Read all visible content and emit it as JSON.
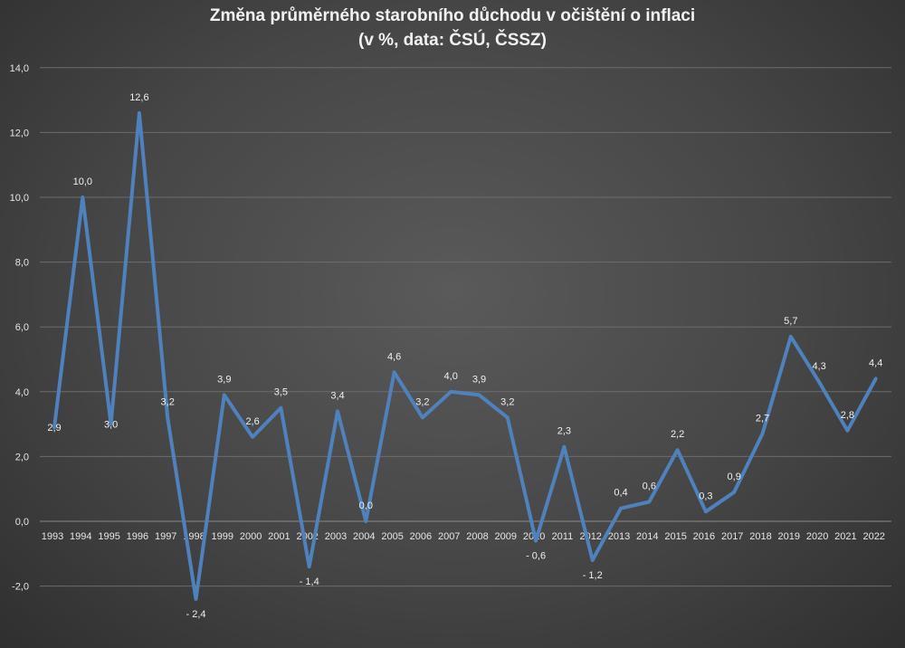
{
  "chart_data": {
    "type": "line",
    "title": "Změna průměrného starobního důchodu v očištění o inflaci",
    "subtitle": "(v %, data: ČSÚ, ČSSZ)",
    "xlabel": "",
    "ylabel": "",
    "ylim": [
      -4,
      14
    ],
    "y_ticks": [
      "14,0",
      "12,0",
      "10,0",
      "8,0",
      "6,0",
      "4,0",
      "2,0",
      "0,0",
      "-2,0"
    ],
    "y_tick_values": [
      14,
      12,
      10,
      8,
      6,
      4,
      2,
      0,
      -2
    ],
    "grid": true,
    "legend": "none",
    "line_color": "#4f81bd",
    "categories": [
      "1993",
      "1994",
      "1995",
      "1996",
      "1997",
      "1998",
      "1999",
      "2000",
      "2001",
      "2002",
      "2003",
      "2004",
      "2005",
      "2006",
      "2007",
      "2008",
      "2009",
      "2010",
      "2011",
      "2012",
      "2013",
      "2014",
      "2015",
      "2016",
      "2017",
      "2018",
      "2019",
      "2020",
      "2021",
      "2022"
    ],
    "values": [
      2.9,
      10.0,
      3.0,
      12.6,
      3.2,
      -2.4,
      3.9,
      2.6,
      3.5,
      -1.4,
      3.4,
      0.0,
      4.6,
      3.2,
      4.0,
      3.9,
      3.2,
      -0.6,
      2.3,
      -1.2,
      0.4,
      0.6,
      2.2,
      0.3,
      0.9,
      2.7,
      5.7,
      4.3,
      2.8,
      4.4
    ],
    "data_labels": [
      "2,9",
      "10,0",
      "3,0",
      "12,6",
      "3,2",
      "- 2,4",
      "3,9",
      "2,6",
      "3,5",
      "- 1,4",
      "3,4",
      "0,0",
      "4,6",
      "3,2",
      "4,0",
      "3,9",
      "3,2",
      "- 0,6",
      "2,3",
      "- 1,2",
      "0,4",
      "0,6",
      "2,2",
      "0,3",
      "0,9",
      "2,7",
      "5,7",
      "4,3",
      "2,8",
      "4,4"
    ]
  }
}
